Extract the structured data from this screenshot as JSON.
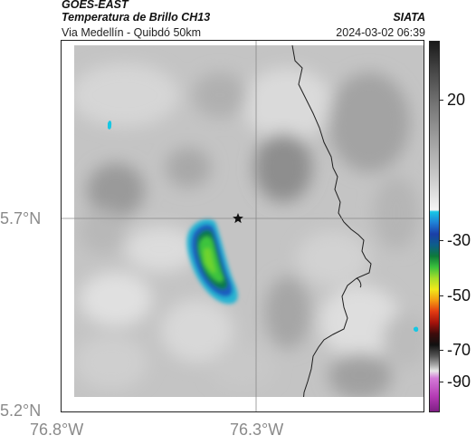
{
  "header": {
    "satellite": "GOES-EAST",
    "product": "Temperatura de Brillo CH13",
    "source": "SIATA",
    "route": "Via Medellín - Quibdó 50km",
    "timestamp": "2024-03-02 06:39"
  },
  "map": {
    "lat_labels": [
      "5.7°N",
      "5.2°N"
    ],
    "lon_labels": [
      "76.8°W",
      "76.3°W"
    ],
    "marker_icon": "star-icon"
  },
  "colorbar": {
    "tick_labels": [
      "20",
      "-30",
      "-50",
      "-70",
      "-90"
    ]
  }
}
